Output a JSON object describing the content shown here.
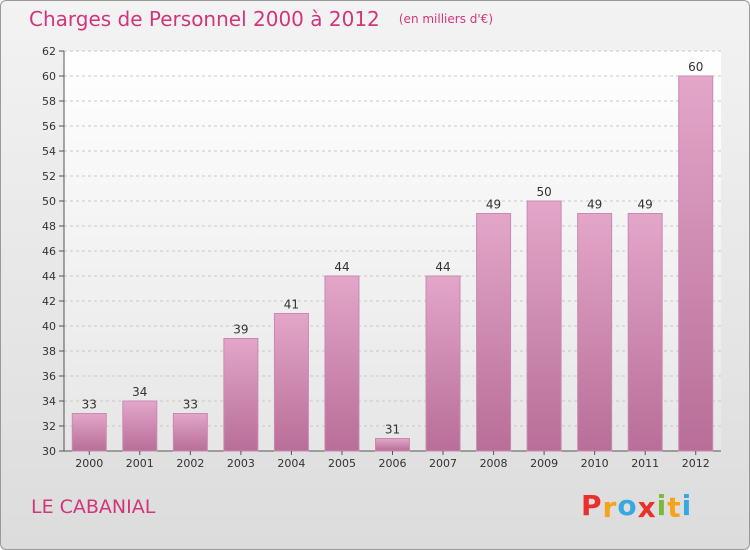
{
  "title": "Charges de Personnel 2000 à 2012",
  "subtitle": "(en milliers d'€)",
  "commune": "LE CABANIAL",
  "brand": {
    "letters": [
      "P",
      "r",
      "o",
      "x",
      "i",
      "t",
      "i"
    ],
    "colors": [
      "#e8312b",
      "#f5a31a",
      "#38a9e0",
      "#e8312b",
      "#7cb83a",
      "#f5a31a",
      "#38a9e0"
    ]
  },
  "colors": {
    "bar": "#d98cb6",
    "title": "#d2357a"
  },
  "chart_data": {
    "type": "bar",
    "categories": [
      "2000",
      "2001",
      "2002",
      "2003",
      "2004",
      "2005",
      "2006",
      "2007",
      "2008",
      "2009",
      "2010",
      "2011",
      "2012"
    ],
    "values": [
      33,
      34,
      33,
      39,
      41,
      44,
      31,
      44,
      49,
      50,
      49,
      49,
      60
    ],
    "ylim": [
      30,
      62
    ],
    "yticks": [
      30,
      32,
      34,
      36,
      38,
      40,
      42,
      44,
      46,
      48,
      50,
      52,
      54,
      56,
      58,
      60,
      62
    ],
    "grid": true,
    "xlabel": "",
    "ylabel": ""
  }
}
